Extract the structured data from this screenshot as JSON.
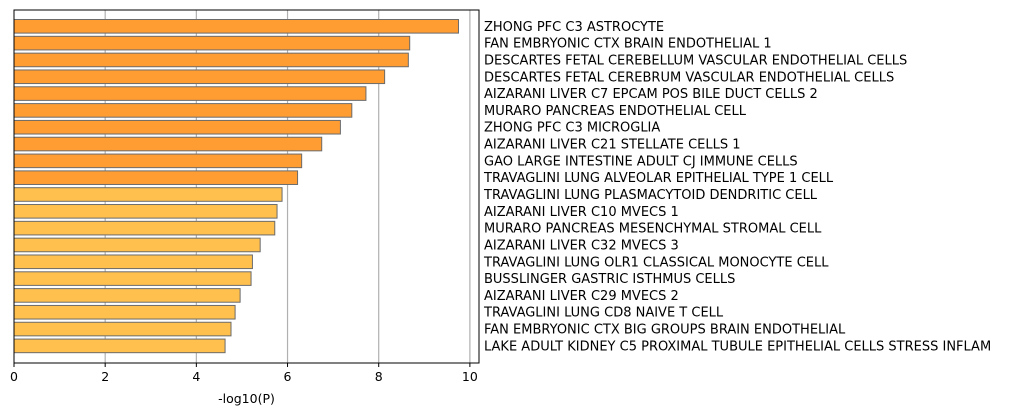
{
  "chart_data": {
    "type": "bar",
    "orientation": "horizontal",
    "xlabel": "-log10(P)",
    "ylabel": "",
    "title": "",
    "xlim": [
      0,
      10.2
    ],
    "xticks": [
      "0",
      "2",
      "4",
      "6",
      "8",
      "10"
    ],
    "grid": "vertical",
    "colors": {
      "dark": "#ff9d33",
      "light": "#ffc04d",
      "edge": "#6b6b6b"
    },
    "categories": [
      "ZHONG PFC C3 ASTROCYTE",
      "FAN EMBRYONIC CTX BRAIN ENDOTHELIAL 1",
      "DESCARTES FETAL CEREBELLUM VASCULAR ENDOTHELIAL CELLS",
      "DESCARTES FETAL CEREBRUM VASCULAR ENDOTHELIAL CELLS",
      "AIZARANI LIVER C7 EPCAM POS BILE DUCT CELLS 2",
      "MURARO PANCREAS ENDOTHELIAL CELL",
      "ZHONG PFC C3 MICROGLIA",
      "AIZARANI LIVER C21 STELLATE CELLS 1",
      "GAO LARGE INTESTINE ADULT CJ IMMUNE CELLS",
      "TRAVAGLINI LUNG ALVEOLAR EPITHELIAL TYPE 1 CELL",
      "TRAVAGLINI LUNG PLASMACYTOID DENDRITIC CELL",
      "AIZARANI LIVER C10 MVECS 1",
      "MURARO PANCREAS MESENCHYMAL STROMAL CELL",
      "AIZARANI LIVER C32 MVECS 3",
      "TRAVAGLINI LUNG OLR1 CLASSICAL MONOCYTE CELL",
      "BUSSLINGER GASTRIC ISTHMUS CELLS",
      "AIZARANI LIVER C29 MVECS 2",
      "TRAVAGLINI LUNG CD8 NAIVE T CELL",
      "FAN EMBRYONIC CTX BIG GROUPS BRAIN ENDOTHELIAL",
      "LAKE ADULT KIDNEY C5 PROXIMAL TUBULE EPITHELIAL CELLS STRESS INFLAM"
    ],
    "values": [
      9.75,
      8.68,
      8.65,
      8.13,
      7.72,
      7.41,
      7.16,
      6.75,
      6.31,
      6.22,
      5.88,
      5.77,
      5.72,
      5.4,
      5.23,
      5.2,
      4.96,
      4.85,
      4.76,
      4.63
    ],
    "shade": [
      "dark",
      "dark",
      "dark",
      "dark",
      "dark",
      "dark",
      "dark",
      "dark",
      "dark",
      "dark",
      "light",
      "light",
      "light",
      "light",
      "light",
      "light",
      "light",
      "light",
      "light",
      "light"
    ]
  }
}
